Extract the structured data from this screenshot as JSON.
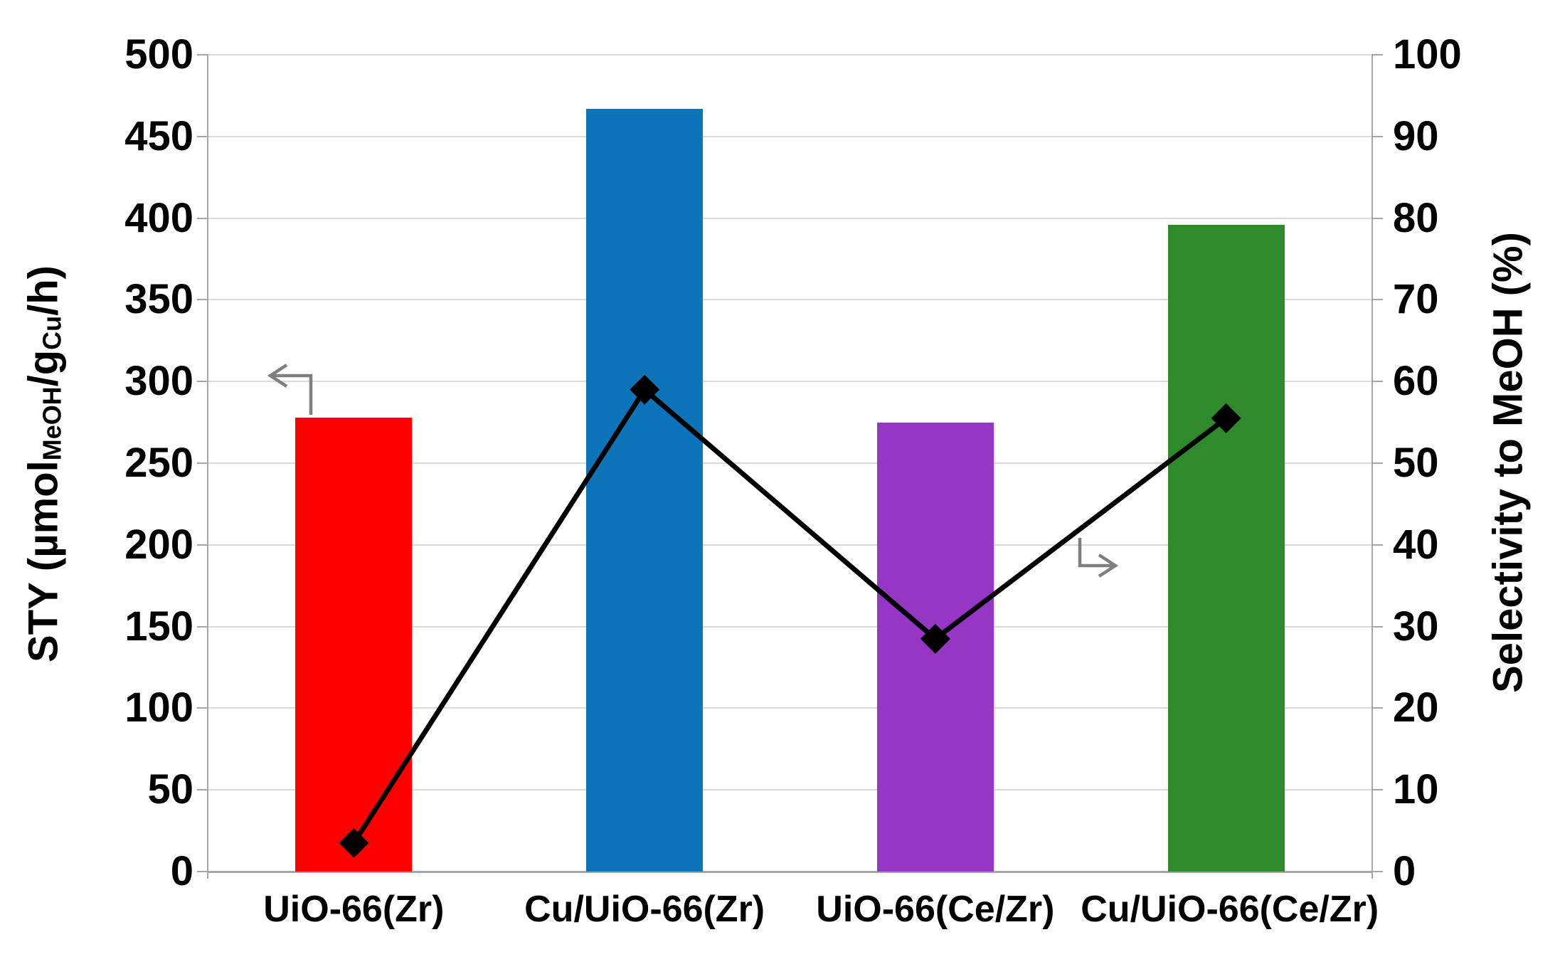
{
  "chart_data": {
    "type": "combo-bar-line",
    "title": "",
    "categories": [
      "UiO-66(Zr)",
      "Cu/UiO-66(Zr)",
      "UiO-66(Ce/Zr)",
      "Cu/UiO-66(Ce/Zr)"
    ],
    "series": [
      {
        "name": "STY",
        "type": "bar",
        "axis": "left",
        "values": [
          278,
          467,
          275,
          396
        ],
        "bar_colors": [
          "#FF0000",
          "#0C75BA",
          "#9636C4",
          "#2F8A2B"
        ]
      },
      {
        "name": "Selectivity to MeOH",
        "type": "line",
        "axis": "right",
        "values": [
          3.5,
          59,
          28.5,
          55.5
        ],
        "color": "#000000",
        "marker": "diamond"
      }
    ],
    "left_axis": {
      "label": "STY (µmol_MeOH/g_Cu/h)",
      "label_parts": {
        "pre": "STY (µmol",
        "sub1": "MeOH",
        "mid": "/g",
        "sub2": "Cu",
        "post": "/h)"
      },
      "min": 0,
      "max": 500,
      "step": 50,
      "ticks": [
        "500",
        "450",
        "400",
        "350",
        "300",
        "250",
        "200",
        "150",
        "100",
        "50",
        "0"
      ]
    },
    "right_axis": {
      "label": "Selectivity to MeOH (%)",
      "min": 0,
      "max": 100,
      "step": 10,
      "ticks": [
        "100",
        "90",
        "80",
        "70",
        "60",
        "50",
        "40",
        "30",
        "20",
        "10",
        "0"
      ]
    },
    "grid": "horizontal",
    "legend": "none",
    "annotations": [
      {
        "name": "bars-read-left-axis-arrow",
        "direction": "left"
      },
      {
        "name": "line-reads-right-axis-arrow",
        "direction": "right"
      }
    ]
  },
  "colors": {
    "background": "#FFFFFF",
    "gridline": "#D9D9D9",
    "axis_line": "#A6A6A6",
    "tick_text": "#000000",
    "arrow": "#7F7F7F",
    "line_series": "#000000"
  }
}
